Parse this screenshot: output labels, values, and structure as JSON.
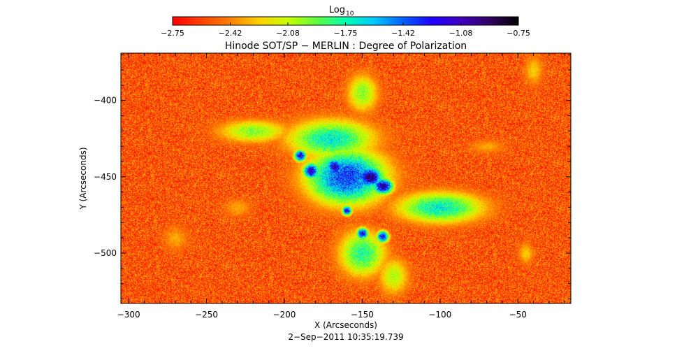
{
  "colorbar": {
    "label_base": "Log",
    "label_sub": "10",
    "ticks": [
      "−2.75",
      "−2.42",
      "−2.08",
      "−1.75",
      "−1.42",
      "−1.08",
      "−0.75"
    ],
    "range": [
      -2.75,
      -0.75
    ],
    "colormap": [
      "#ff0000",
      "#ff4000",
      "#ff8000",
      "#ffd000",
      "#c8ff00",
      "#60ff40",
      "#00ffb0",
      "#00c8ff",
      "#0060ff",
      "#2000ff",
      "#4000c0",
      "#300060",
      "#000000"
    ]
  },
  "chart_data": {
    "type": "heatmap",
    "title": "Hinode SOT/SP − MERLIN : Degree of Polarization",
    "xlabel": "X (Arcseconds)",
    "ylabel": "Y (Arcseconds)",
    "xlim": [
      -305,
      -16
    ],
    "ylim": [
      -533,
      -369
    ],
    "x_ticks": [
      {
        "value": -300,
        "label": "−300"
      },
      {
        "value": -250,
        "label": "−250"
      },
      {
        "value": -200,
        "label": "−200"
      },
      {
        "value": -150,
        "label": "−150"
      },
      {
        "value": -100,
        "label": "−100"
      },
      {
        "value": -50,
        "label": "−50"
      }
    ],
    "y_ticks": [
      {
        "value": -400,
        "label": "−400"
      },
      {
        "value": -450,
        "label": "−450"
      },
      {
        "value": -500,
        "label": "−500"
      }
    ],
    "grid": false,
    "value_units": "log10 degree of polarization",
    "background_level": -2.75,
    "features": [
      {
        "kind": "sunspot",
        "x": -145,
        "y": -450,
        "sx": 6,
        "sy": 5,
        "level": -0.8
      },
      {
        "kind": "sunspot",
        "x": -137,
        "y": -456,
        "sx": 5,
        "sy": 4,
        "level": -0.85
      },
      {
        "kind": "pore",
        "x": -183,
        "y": -446,
        "sx": 4,
        "sy": 4,
        "level": -0.95
      },
      {
        "kind": "pore",
        "x": -168,
        "y": -443,
        "sx": 4,
        "sy": 4,
        "level": -0.95
      },
      {
        "kind": "pore",
        "x": -190,
        "y": -436,
        "sx": 3,
        "sy": 3,
        "level": -1.0
      },
      {
        "kind": "pore",
        "x": -160,
        "y": -472,
        "sx": 2.5,
        "sy": 2.5,
        "level": -1.05
      },
      {
        "kind": "pore",
        "x": -150,
        "y": -487,
        "sx": 3,
        "sy": 3,
        "level": -1.05
      },
      {
        "kind": "pore",
        "x": -137,
        "y": -489,
        "sx": 3,
        "sy": 3,
        "level": -1.05
      },
      {
        "kind": "active-region",
        "x": -160,
        "y": -450,
        "sx": 20,
        "sy": 14,
        "level": -1.2
      },
      {
        "kind": "plage",
        "x": -170,
        "y": -425,
        "sx": 22,
        "sy": 10,
        "level": -1.6
      },
      {
        "kind": "plage",
        "x": -100,
        "y": -470,
        "sx": 22,
        "sy": 8,
        "level": -1.6
      },
      {
        "kind": "plage",
        "x": -150,
        "y": -500,
        "sx": 12,
        "sy": 12,
        "level": -1.7
      },
      {
        "kind": "plage",
        "x": -220,
        "y": -420,
        "sx": 18,
        "sy": 6,
        "level": -1.9
      },
      {
        "kind": "plage",
        "x": -150,
        "y": -395,
        "sx": 8,
        "sy": 10,
        "level": -1.9
      },
      {
        "kind": "plage",
        "x": -130,
        "y": -515,
        "sx": 8,
        "sy": 10,
        "level": -2.0
      },
      {
        "kind": "network",
        "x": -270,
        "y": -490,
        "sx": 7,
        "sy": 7,
        "level": -2.3
      },
      {
        "kind": "network",
        "x": -230,
        "y": -470,
        "sx": 8,
        "sy": 5,
        "level": -2.3
      },
      {
        "kind": "network",
        "x": -40,
        "y": -380,
        "sx": 5,
        "sy": 8,
        "level": -2.2
      },
      {
        "kind": "network",
        "x": -45,
        "y": -500,
        "sx": 4,
        "sy": 6,
        "level": -2.2
      },
      {
        "kind": "network",
        "x": -70,
        "y": -430,
        "sx": 10,
        "sy": 4,
        "level": -2.3
      }
    ]
  },
  "timestamp": "2−Sep−2011 10:35:19.739"
}
